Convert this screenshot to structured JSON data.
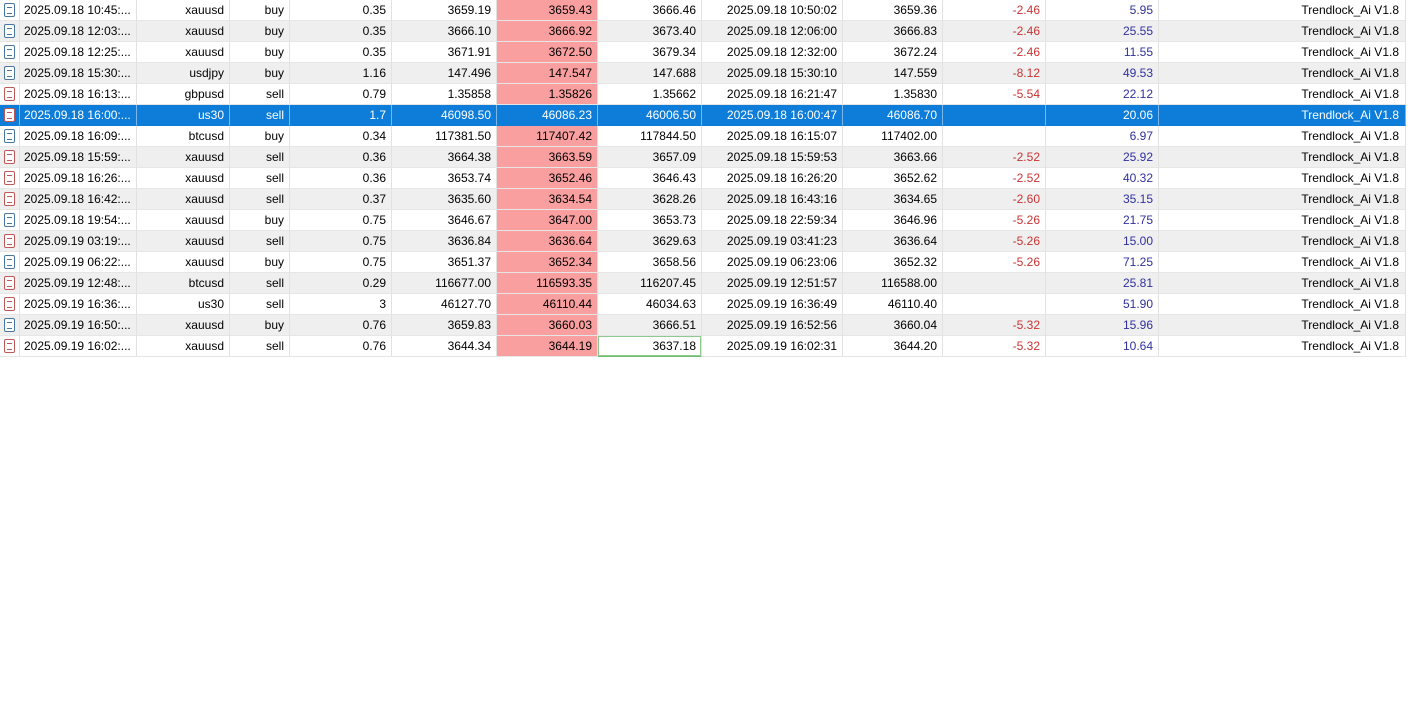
{
  "app": {
    "view": "account-history-table"
  },
  "colors": {
    "selection_blue": "#0d7dd9",
    "sl_cell_pink": "#fa9f9f",
    "commission_red": "#cc3333",
    "profit_blue": "#3030a0",
    "buy_icon_blue": "#4878a0",
    "sell_icon_red": "#c05858",
    "tp_hit_green": "#8fc98f",
    "stripe_gray": "#efefef"
  },
  "rows": [
    {
      "icon": "buy-ticket-icon",
      "open_time": "2025.09.18 10:45:...",
      "symbol": "xauusd",
      "type": "buy",
      "volume": "0.35",
      "open_price": "3659.19",
      "sl": "3659.43",
      "tp": "3666.46",
      "close_time": "2025.09.18 10:50:02",
      "close_price": "3659.36",
      "commission": "-2.46",
      "profit": "5.95",
      "comment": "Trendlock_Ai V1.8",
      "selected": false,
      "tp_hit": false
    },
    {
      "icon": "buy-ticket-icon",
      "open_time": "2025.09.18 12:03:...",
      "symbol": "xauusd",
      "type": "buy",
      "volume": "0.35",
      "open_price": "3666.10",
      "sl": "3666.92",
      "tp": "3673.40",
      "close_time": "2025.09.18 12:06:00",
      "close_price": "3666.83",
      "commission": "-2.46",
      "profit": "25.55",
      "comment": "Trendlock_Ai V1.8",
      "selected": false,
      "tp_hit": false
    },
    {
      "icon": "buy-ticket-icon",
      "open_time": "2025.09.18 12:25:...",
      "symbol": "xauusd",
      "type": "buy",
      "volume": "0.35",
      "open_price": "3671.91",
      "sl": "3672.50",
      "tp": "3679.34",
      "close_time": "2025.09.18 12:32:00",
      "close_price": "3672.24",
      "commission": "-2.46",
      "profit": "11.55",
      "comment": "Trendlock_Ai V1.8",
      "selected": false,
      "tp_hit": false
    },
    {
      "icon": "buy-ticket-icon",
      "open_time": "2025.09.18 15:30:...",
      "symbol": "usdjpy",
      "type": "buy",
      "volume": "1.16",
      "open_price": "147.496",
      "sl": "147.547",
      "tp": "147.688",
      "close_time": "2025.09.18 15:30:10",
      "close_price": "147.559",
      "commission": "-8.12",
      "profit": "49.53",
      "comment": "Trendlock_Ai V1.8",
      "selected": false,
      "tp_hit": false
    },
    {
      "icon": "sell-ticket-icon",
      "open_time": "2025.09.18 16:13:...",
      "symbol": "gbpusd",
      "type": "sell",
      "volume": "0.79",
      "open_price": "1.35858",
      "sl": "1.35826",
      "tp": "1.35662",
      "close_time": "2025.09.18 16:21:47",
      "close_price": "1.35830",
      "commission": "-5.54",
      "profit": "22.12",
      "comment": "Trendlock_Ai V1.8",
      "selected": false,
      "tp_hit": false
    },
    {
      "icon": "sell-ticket-icon",
      "open_time": "2025.09.18 16:00:...",
      "symbol": "us30",
      "type": "sell",
      "volume": "1.7",
      "open_price": "46098.50",
      "sl": "46086.23",
      "tp": "46006.50",
      "close_time": "2025.09.18 16:00:47",
      "close_price": "46086.70",
      "commission": "",
      "profit": "20.06",
      "comment": "Trendlock_Ai V1.8",
      "selected": true,
      "tp_hit": false
    },
    {
      "icon": "buy-ticket-icon",
      "open_time": "2025.09.18 16:09:...",
      "symbol": "btcusd",
      "type": "buy",
      "volume": "0.34",
      "open_price": "117381.50",
      "sl": "117407.42",
      "tp": "117844.50",
      "close_time": "2025.09.18 16:15:07",
      "close_price": "117402.00",
      "commission": "",
      "profit": "6.97",
      "comment": "Trendlock_Ai V1.8",
      "selected": false,
      "tp_hit": false
    },
    {
      "icon": "sell-ticket-icon",
      "open_time": "2025.09.18 15:59:...",
      "symbol": "xauusd",
      "type": "sell",
      "volume": "0.36",
      "open_price": "3664.38",
      "sl": "3663.59",
      "tp": "3657.09",
      "close_time": "2025.09.18 15:59:53",
      "close_price": "3663.66",
      "commission": "-2.52",
      "profit": "25.92",
      "comment": "Trendlock_Ai V1.8",
      "selected": false,
      "tp_hit": false
    },
    {
      "icon": "sell-ticket-icon",
      "open_time": "2025.09.18 16:26:...",
      "symbol": "xauusd",
      "type": "sell",
      "volume": "0.36",
      "open_price": "3653.74",
      "sl": "3652.46",
      "tp": "3646.43",
      "close_time": "2025.09.18 16:26:20",
      "close_price": "3652.62",
      "commission": "-2.52",
      "profit": "40.32",
      "comment": "Trendlock_Ai V1.8",
      "selected": false,
      "tp_hit": false
    },
    {
      "icon": "sell-ticket-icon",
      "open_time": "2025.09.18 16:42:...",
      "symbol": "xauusd",
      "type": "sell",
      "volume": "0.37",
      "open_price": "3635.60",
      "sl": "3634.54",
      "tp": "3628.26",
      "close_time": "2025.09.18 16:43:16",
      "close_price": "3634.65",
      "commission": "-2.60",
      "profit": "35.15",
      "comment": "Trendlock_Ai V1.8",
      "selected": false,
      "tp_hit": false
    },
    {
      "icon": "buy-ticket-icon",
      "open_time": "2025.09.18 19:54:...",
      "symbol": "xauusd",
      "type": "buy",
      "volume": "0.75",
      "open_price": "3646.67",
      "sl": "3647.00",
      "tp": "3653.73",
      "close_time": "2025.09.18 22:59:34",
      "close_price": "3646.96",
      "commission": "-5.26",
      "profit": "21.75",
      "comment": "Trendlock_Ai V1.8",
      "selected": false,
      "tp_hit": false
    },
    {
      "icon": "sell-ticket-icon",
      "open_time": "2025.09.19 03:19:...",
      "symbol": "xauusd",
      "type": "sell",
      "volume": "0.75",
      "open_price": "3636.84",
      "sl": "3636.64",
      "tp": "3629.63",
      "close_time": "2025.09.19 03:41:23",
      "close_price": "3636.64",
      "commission": "-5.26",
      "profit": "15.00",
      "comment": "Trendlock_Ai V1.8",
      "selected": false,
      "tp_hit": false
    },
    {
      "icon": "buy-ticket-icon",
      "open_time": "2025.09.19 06:22:...",
      "symbol": "xauusd",
      "type": "buy",
      "volume": "0.75",
      "open_price": "3651.37",
      "sl": "3652.34",
      "tp": "3658.56",
      "close_time": "2025.09.19 06:23:06",
      "close_price": "3652.32",
      "commission": "-5.26",
      "profit": "71.25",
      "comment": "Trendlock_Ai V1.8",
      "selected": false,
      "tp_hit": false
    },
    {
      "icon": "sell-ticket-icon",
      "open_time": "2025.09.19 12:48:...",
      "symbol": "btcusd",
      "type": "sell",
      "volume": "0.29",
      "open_price": "116677.00",
      "sl": "116593.35",
      "tp": "116207.45",
      "close_time": "2025.09.19 12:51:57",
      "close_price": "116588.00",
      "commission": "",
      "profit": "25.81",
      "comment": "Trendlock_Ai V1.8",
      "selected": false,
      "tp_hit": false
    },
    {
      "icon": "sell-ticket-icon",
      "open_time": "2025.09.19 16:36:...",
      "symbol": "us30",
      "type": "sell",
      "volume": "3",
      "open_price": "46127.70",
      "sl": "46110.44",
      "tp": "46034.63",
      "close_time": "2025.09.19 16:36:49",
      "close_price": "46110.40",
      "commission": "",
      "profit": "51.90",
      "comment": "Trendlock_Ai V1.8",
      "selected": false,
      "tp_hit": false
    },
    {
      "icon": "buy-ticket-icon",
      "open_time": "2025.09.19 16:50:...",
      "symbol": "xauusd",
      "type": "buy",
      "volume": "0.76",
      "open_price": "3659.83",
      "sl": "3660.03",
      "tp": "3666.51",
      "close_time": "2025.09.19 16:52:56",
      "close_price": "3660.04",
      "commission": "-5.32",
      "profit": "15.96",
      "comment": "Trendlock_Ai V1.8",
      "selected": false,
      "tp_hit": false
    },
    {
      "icon": "sell-ticket-icon",
      "open_time": "2025.09.19 16:02:...",
      "symbol": "xauusd",
      "type": "sell",
      "volume": "0.76",
      "open_price": "3644.34",
      "sl": "3644.19",
      "tp": "3637.18",
      "close_time": "2025.09.19 16:02:31",
      "close_price": "3644.20",
      "commission": "-5.32",
      "profit": "10.64",
      "comment": "Trendlock_Ai V1.8",
      "selected": false,
      "tp_hit": true
    }
  ]
}
